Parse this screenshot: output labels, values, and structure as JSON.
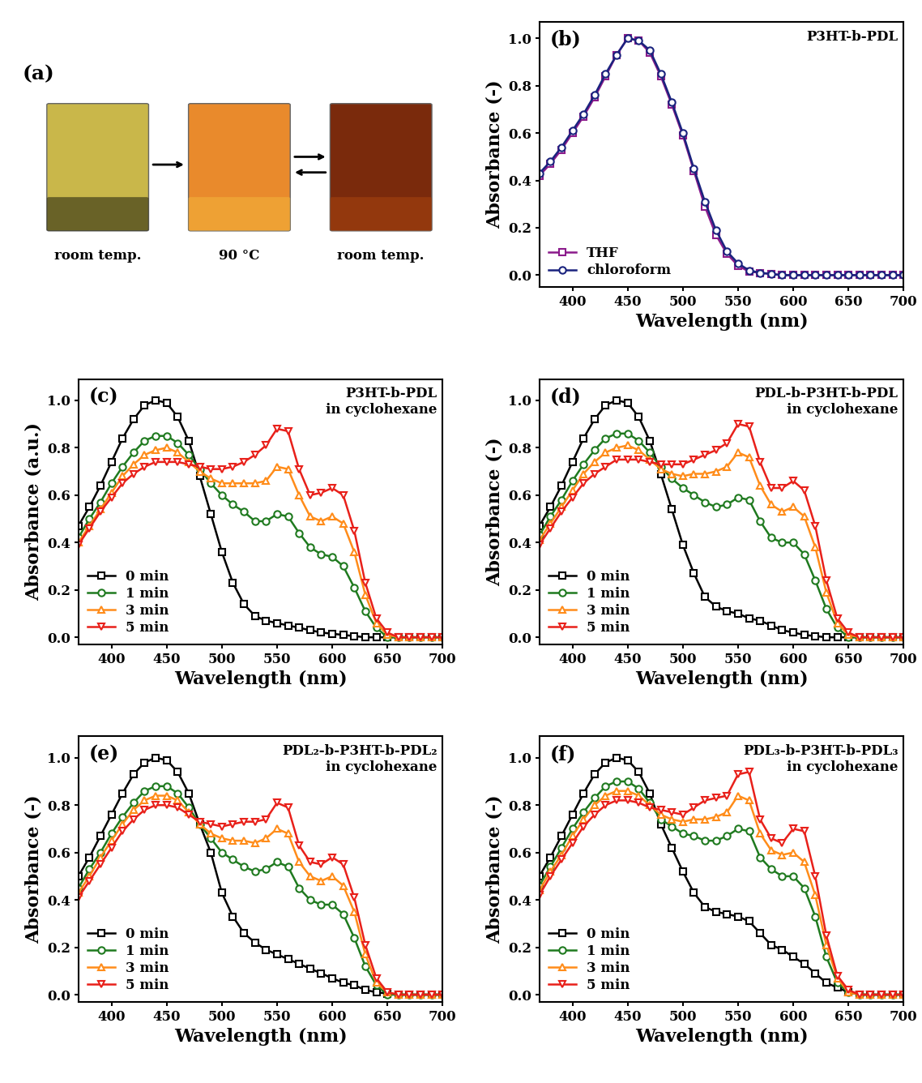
{
  "photos": {
    "label": "(a)",
    "captions": [
      "room temp.",
      "90 °C",
      "room temp."
    ]
  },
  "chart_data": [
    {
      "type": "line",
      "title": "(b)",
      "annotation": "P3HT-b-PDL",
      "x_label": "Wavelength (nm)",
      "y_label": "Absorbance (-)",
      "x": [
        370,
        380,
        390,
        400,
        410,
        420,
        430,
        440,
        450,
        460,
        470,
        480,
        490,
        500,
        510,
        520,
        530,
        540,
        550,
        560,
        570,
        580,
        590,
        600,
        610,
        620,
        630,
        640,
        650,
        660,
        670,
        680,
        690,
        700
      ],
      "xlim": [
        370,
        700
      ],
      "xticks": [
        400,
        450,
        500,
        550,
        600,
        650,
        700
      ],
      "ylim": [
        -0.05,
        1.07
      ],
      "yticks": [
        {
          "value": 0.0,
          "label": "0.0"
        },
        0.2,
        0.4,
        0.6,
        0.8,
        {
          "value": 1.0,
          "label": "1.0"
        }
      ],
      "legend": "lower left",
      "series": [
        {
          "name": "THF",
          "color": "#8b1a8b",
          "marker": "square",
          "values": [
            0.42,
            0.47,
            0.53,
            0.6,
            0.67,
            0.75,
            0.84,
            0.93,
            1.0,
            0.99,
            0.94,
            0.84,
            0.72,
            0.59,
            0.44,
            0.29,
            0.17,
            0.09,
            0.04,
            0.015,
            0.01,
            0.005,
            0,
            0,
            0,
            0,
            0,
            0,
            0,
            0,
            0,
            0,
            0,
            0
          ]
        },
        {
          "name": "chloroform",
          "color": "#1a237e",
          "marker": "circle",
          "values": [
            0.43,
            0.48,
            0.54,
            0.61,
            0.68,
            0.76,
            0.85,
            0.93,
            1.0,
            0.99,
            0.95,
            0.85,
            0.73,
            0.6,
            0.45,
            0.31,
            0.19,
            0.1,
            0.05,
            0.02,
            0.01,
            0.005,
            0,
            0,
            0,
            0,
            0,
            0,
            0,
            0,
            0,
            0,
            0,
            0
          ]
        }
      ]
    },
    {
      "type": "line",
      "title": "(c)",
      "annotation": "P3HT-b-PDL\nin cyclohexane",
      "x_label": "Wavelength (nm)",
      "y_label": "Absorbance (a.u.)",
      "x": [
        370,
        380,
        390,
        400,
        410,
        420,
        430,
        440,
        450,
        460,
        470,
        480,
        490,
        500,
        510,
        520,
        530,
        540,
        550,
        560,
        570,
        580,
        590,
        600,
        610,
        620,
        630,
        640,
        650,
        660,
        670,
        680,
        690,
        700
      ],
      "xlim": [
        370,
        700
      ],
      "xticks": [
        400,
        450,
        500,
        550,
        600,
        650,
        700
      ],
      "ylim": [
        -0.03,
        1.09
      ],
      "yticks": [
        {
          "value": 0.0,
          "label": "0.0"
        },
        0.2,
        0.4,
        0.6,
        0.8,
        {
          "value": 1.0,
          "label": "1.0"
        }
      ],
      "legend": "lower left",
      "series": [
        {
          "name": "0 min",
          "color": "#000000",
          "marker": "square",
          "values": [
            0.47,
            0.55,
            0.64,
            0.74,
            0.84,
            0.92,
            0.98,
            1.0,
            0.99,
            0.93,
            0.83,
            0.68,
            0.52,
            0.36,
            0.23,
            0.14,
            0.09,
            0.07,
            0.06,
            0.05,
            0.04,
            0.03,
            0.02,
            0.015,
            0.01,
            0.005,
            0,
            0,
            0,
            0,
            0,
            0,
            0,
            0
          ]
        },
        {
          "name": "1 min",
          "color": "#1f7a1f",
          "marker": "circle",
          "values": [
            0.42,
            0.5,
            0.57,
            0.65,
            0.72,
            0.78,
            0.83,
            0.85,
            0.85,
            0.82,
            0.77,
            0.71,
            0.65,
            0.6,
            0.56,
            0.53,
            0.49,
            0.49,
            0.52,
            0.51,
            0.44,
            0.38,
            0.35,
            0.34,
            0.3,
            0.21,
            0.11,
            0.04,
            0,
            0,
            0,
            0,
            0,
            0
          ]
        },
        {
          "name": "3 min",
          "color": "#ff8c1a",
          "marker": "triangle_up",
          "values": [
            0.4,
            0.47,
            0.54,
            0.61,
            0.68,
            0.73,
            0.77,
            0.79,
            0.8,
            0.78,
            0.74,
            0.7,
            0.67,
            0.65,
            0.65,
            0.65,
            0.65,
            0.66,
            0.72,
            0.71,
            0.6,
            0.51,
            0.49,
            0.51,
            0.48,
            0.36,
            0.18,
            0.06,
            0.01,
            0,
            0,
            0,
            0,
            0
          ]
        },
        {
          "name": "5 min",
          "color": "#e8201a",
          "marker": "triangle_down",
          "values": [
            0.39,
            0.46,
            0.53,
            0.59,
            0.65,
            0.69,
            0.72,
            0.74,
            0.74,
            0.74,
            0.73,
            0.72,
            0.71,
            0.71,
            0.72,
            0.74,
            0.77,
            0.81,
            0.88,
            0.87,
            0.71,
            0.6,
            0.61,
            0.63,
            0.6,
            0.45,
            0.23,
            0.08,
            0.02,
            0,
            0,
            0,
            0,
            0
          ]
        }
      ]
    },
    {
      "type": "line",
      "title": "(d)",
      "annotation": "PDL-b-P3HT-b-PDL\nin cyclohexane",
      "x_label": "Wavelength (nm)",
      "y_label": "Absorbance (-)",
      "x": [
        370,
        380,
        390,
        400,
        410,
        420,
        430,
        440,
        450,
        460,
        470,
        480,
        490,
        500,
        510,
        520,
        530,
        540,
        550,
        560,
        570,
        580,
        590,
        600,
        610,
        620,
        630,
        640,
        650,
        660,
        670,
        680,
        690,
        700
      ],
      "xlim": [
        370,
        700
      ],
      "xticks": [
        400,
        450,
        500,
        550,
        600,
        650,
        700
      ],
      "ylim": [
        -0.03,
        1.09
      ],
      "yticks": [
        {
          "value": 0.0,
          "label": "0.0"
        },
        0.2,
        0.4,
        0.6,
        0.8,
        {
          "value": 1.0,
          "label": "1.0"
        }
      ],
      "legend": "lower left",
      "series": [
        {
          "name": "0 min",
          "color": "#000000",
          "marker": "square",
          "values": [
            0.47,
            0.55,
            0.64,
            0.74,
            0.84,
            0.92,
            0.98,
            1.0,
            0.99,
            0.93,
            0.83,
            0.69,
            0.54,
            0.39,
            0.27,
            0.17,
            0.13,
            0.11,
            0.1,
            0.08,
            0.07,
            0.05,
            0.03,
            0.02,
            0.01,
            0.005,
            0,
            0,
            0,
            0,
            0,
            0,
            0,
            0
          ]
        },
        {
          "name": "1 min",
          "color": "#1f7a1f",
          "marker": "circle",
          "values": [
            0.43,
            0.51,
            0.58,
            0.66,
            0.73,
            0.79,
            0.84,
            0.86,
            0.86,
            0.83,
            0.78,
            0.72,
            0.67,
            0.63,
            0.6,
            0.57,
            0.55,
            0.56,
            0.59,
            0.58,
            0.49,
            0.42,
            0.4,
            0.4,
            0.35,
            0.24,
            0.12,
            0.04,
            0,
            0,
            0,
            0,
            0,
            0
          ]
        },
        {
          "name": "3 min",
          "color": "#ff8c1a",
          "marker": "triangle_up",
          "values": [
            0.41,
            0.48,
            0.55,
            0.62,
            0.69,
            0.74,
            0.78,
            0.8,
            0.81,
            0.79,
            0.75,
            0.71,
            0.69,
            0.68,
            0.69,
            0.69,
            0.7,
            0.72,
            0.78,
            0.76,
            0.64,
            0.56,
            0.53,
            0.55,
            0.51,
            0.38,
            0.19,
            0.06,
            0.01,
            0,
            0,
            0,
            0,
            0
          ]
        },
        {
          "name": "5 min",
          "color": "#e8201a",
          "marker": "triangle_down",
          "values": [
            0.39,
            0.46,
            0.53,
            0.59,
            0.65,
            0.69,
            0.72,
            0.75,
            0.75,
            0.75,
            0.74,
            0.73,
            0.73,
            0.73,
            0.75,
            0.77,
            0.79,
            0.82,
            0.9,
            0.89,
            0.74,
            0.63,
            0.63,
            0.66,
            0.62,
            0.47,
            0.24,
            0.08,
            0.02,
            0,
            0,
            0,
            0,
            0
          ]
        }
      ]
    },
    {
      "type": "line",
      "title": "(e)",
      "annotation": "PDL₂-b-P3HT-b-PDL₂\nin cyclohexane",
      "x_label": "Wavelength (nm)",
      "y_label": "Absorbance (-)",
      "x": [
        370,
        380,
        390,
        400,
        410,
        420,
        430,
        440,
        450,
        460,
        470,
        480,
        490,
        500,
        510,
        520,
        530,
        540,
        550,
        560,
        570,
        580,
        590,
        600,
        610,
        620,
        630,
        640,
        650,
        660,
        670,
        680,
        690,
        700
      ],
      "xlim": [
        370,
        700
      ],
      "xticks": [
        400,
        450,
        500,
        550,
        600,
        650,
        700
      ],
      "ylim": [
        -0.03,
        1.09
      ],
      "yticks": [
        {
          "value": 0.0,
          "label": "0.0"
        },
        0.2,
        0.4,
        0.6,
        0.8,
        {
          "value": 1.0,
          "label": "1.0"
        }
      ],
      "legend": "lower left",
      "series": [
        {
          "name": "0 min",
          "color": "#000000",
          "marker": "square",
          "values": [
            0.5,
            0.58,
            0.67,
            0.76,
            0.85,
            0.93,
            0.98,
            1.0,
            0.99,
            0.94,
            0.85,
            0.72,
            0.6,
            0.43,
            0.33,
            0.26,
            0.22,
            0.19,
            0.17,
            0.15,
            0.13,
            0.11,
            0.09,
            0.07,
            0.05,
            0.04,
            0.02,
            0.01,
            0.005,
            0,
            0,
            0,
            0,
            0
          ]
        },
        {
          "name": "1 min",
          "color": "#1f7a1f",
          "marker": "circle",
          "values": [
            0.45,
            0.53,
            0.6,
            0.68,
            0.75,
            0.81,
            0.86,
            0.88,
            0.88,
            0.85,
            0.79,
            0.72,
            0.66,
            0.6,
            0.57,
            0.54,
            0.52,
            0.53,
            0.56,
            0.54,
            0.45,
            0.4,
            0.38,
            0.38,
            0.34,
            0.24,
            0.12,
            0.04,
            0,
            0,
            0,
            0,
            0,
            0
          ]
        },
        {
          "name": "3 min",
          "color": "#ff8c1a",
          "marker": "triangle_up",
          "values": [
            0.43,
            0.5,
            0.58,
            0.65,
            0.72,
            0.78,
            0.82,
            0.84,
            0.84,
            0.82,
            0.77,
            0.72,
            0.68,
            0.66,
            0.65,
            0.65,
            0.64,
            0.66,
            0.7,
            0.68,
            0.56,
            0.5,
            0.48,
            0.5,
            0.46,
            0.35,
            0.17,
            0.05,
            0.01,
            0,
            0,
            0,
            0,
            0
          ]
        },
        {
          "name": "5 min",
          "color": "#e8201a",
          "marker": "triangle_down",
          "values": [
            0.41,
            0.48,
            0.55,
            0.62,
            0.69,
            0.74,
            0.78,
            0.8,
            0.8,
            0.79,
            0.76,
            0.73,
            0.72,
            0.71,
            0.72,
            0.73,
            0.73,
            0.74,
            0.81,
            0.79,
            0.63,
            0.56,
            0.55,
            0.58,
            0.55,
            0.41,
            0.21,
            0.07,
            0.01,
            0,
            0,
            0,
            0,
            0
          ]
        }
      ]
    },
    {
      "type": "line",
      "title": "(f)",
      "annotation": "PDL₃-b-P3HT-b-PDL₃\nin cyclohexane",
      "x_label": "Wavelength (nm)",
      "y_label": "Absorbance (-)",
      "x": [
        370,
        380,
        390,
        400,
        410,
        420,
        430,
        440,
        450,
        460,
        470,
        480,
        490,
        500,
        510,
        520,
        530,
        540,
        550,
        560,
        570,
        580,
        590,
        600,
        610,
        620,
        630,
        640,
        650,
        660,
        670,
        680,
        690,
        700
      ],
      "xlim": [
        370,
        700
      ],
      "xticks": [
        400,
        450,
        500,
        550,
        600,
        650,
        700
      ],
      "ylim": [
        -0.03,
        1.09
      ],
      "yticks": [
        {
          "value": 0.0,
          "label": "0.0"
        },
        0.2,
        0.4,
        0.6,
        0.8,
        {
          "value": 1.0,
          "label": "1.0"
        }
      ],
      "legend": "lower left",
      "series": [
        {
          "name": "0 min",
          "color": "#000000",
          "marker": "square",
          "values": [
            0.5,
            0.58,
            0.67,
            0.76,
            0.85,
            0.93,
            0.98,
            1.0,
            0.99,
            0.94,
            0.85,
            0.72,
            0.62,
            0.52,
            0.43,
            0.37,
            0.35,
            0.34,
            0.33,
            0.31,
            0.26,
            0.21,
            0.19,
            0.16,
            0.13,
            0.09,
            0.05,
            0.03,
            0.01,
            0,
            0,
            0,
            0,
            0
          ]
        },
        {
          "name": "1 min",
          "color": "#1f7a1f",
          "marker": "circle",
          "values": [
            0.46,
            0.54,
            0.62,
            0.7,
            0.77,
            0.83,
            0.88,
            0.9,
            0.9,
            0.87,
            0.81,
            0.74,
            0.71,
            0.68,
            0.67,
            0.65,
            0.65,
            0.67,
            0.7,
            0.69,
            0.58,
            0.53,
            0.5,
            0.5,
            0.45,
            0.33,
            0.16,
            0.05,
            0.01,
            0,
            0,
            0,
            0,
            0
          ]
        },
        {
          "name": "3 min",
          "color": "#ff8c1a",
          "marker": "triangle_up",
          "values": [
            0.44,
            0.52,
            0.59,
            0.67,
            0.74,
            0.8,
            0.84,
            0.86,
            0.86,
            0.84,
            0.8,
            0.76,
            0.74,
            0.73,
            0.74,
            0.74,
            0.75,
            0.77,
            0.84,
            0.82,
            0.68,
            0.61,
            0.59,
            0.6,
            0.56,
            0.42,
            0.21,
            0.07,
            0.01,
            0,
            0,
            0,
            0,
            0
          ]
        },
        {
          "name": "5 min",
          "color": "#e8201a",
          "marker": "triangle_down",
          "values": [
            0.42,
            0.5,
            0.57,
            0.64,
            0.71,
            0.76,
            0.8,
            0.82,
            0.82,
            0.81,
            0.79,
            0.78,
            0.77,
            0.76,
            0.79,
            0.82,
            0.83,
            0.84,
            0.93,
            0.94,
            0.74,
            0.66,
            0.64,
            0.7,
            0.69,
            0.5,
            0.25,
            0.08,
            0.02,
            0,
            0,
            0,
            0,
            0
          ]
        }
      ]
    }
  ]
}
